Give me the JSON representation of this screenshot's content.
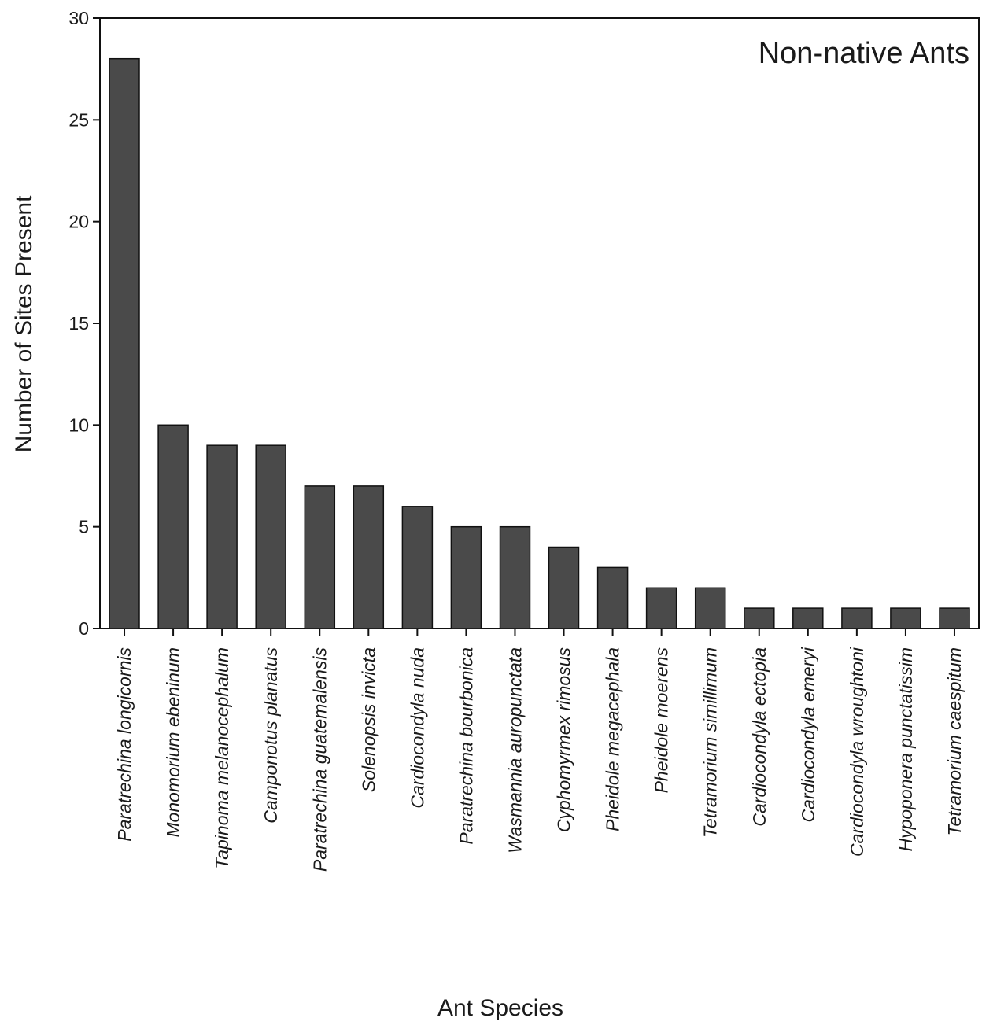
{
  "chart_data": {
    "type": "bar",
    "title": "Non-native Ants",
    "xlabel": "Ant Species",
    "ylabel": "Number of Sites Present",
    "ylim": [
      0,
      30
    ],
    "yticks": [
      0,
      5,
      10,
      15,
      20,
      25,
      30
    ],
    "grid": false,
    "legend": "none",
    "categories": [
      "Paratrechina longicornis",
      "Monomorium ebeninum",
      "Tapinoma melanocephalum",
      "Camponotus planatus",
      "Paratrechina guatemalensis",
      "Solenopsis invicta",
      "Cardiocondyla nuda",
      "Paratrechina bourbonica",
      "Wasmannia auropunctata",
      "Cyphomyrmex rimosus",
      "Pheidole megacephala",
      "Pheidole moerens",
      "Tetramorium simillimum",
      "Cardiocondyla ectopia",
      "Cardiocondyla emeryi",
      "Cardiocondyla wroughtoni",
      "Hypoponera punctatissim",
      "Tetramorium caespitum"
    ],
    "values": [
      28,
      10,
      9,
      9,
      7,
      7,
      6,
      5,
      5,
      4,
      3,
      2,
      2,
      1,
      1,
      1,
      1,
      1
    ],
    "bar_color": "#4a4a4a"
  }
}
